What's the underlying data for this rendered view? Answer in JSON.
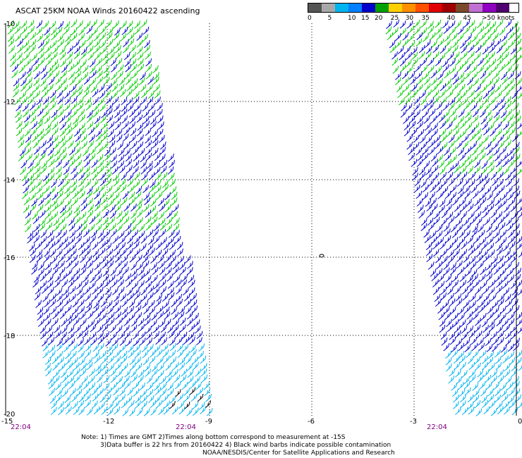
{
  "title": "ASCAT 25KM NOAA Winds 20160422 ascending",
  "legend": {
    "colors": [
      "#555555",
      "#a8a8a8",
      "#00b4f0",
      "#0080ff",
      "#0000cc",
      "#00a000",
      "#ffd000",
      "#ff9000",
      "#ff5000",
      "#e00000",
      "#a00000",
      "#7a4a2a",
      "#c070d0",
      "#9000c0",
      "#500070"
    ],
    "labels": [
      {
        "text": "0",
        "sw": 0
      },
      {
        "text": "5",
        "sw": 1.5
      },
      {
        "text": "10",
        "sw": 3
      },
      {
        "text": "15",
        "sw": 4
      },
      {
        "text": "20",
        "sw": 5
      },
      {
        "text": "25",
        "sw": 6.2
      },
      {
        "text": "30",
        "sw": 7.3
      },
      {
        "text": "35",
        "sw": 8.5
      },
      {
        "text": "40",
        "sw": 10.4
      },
      {
        "text": "45",
        "sw": 11.6
      },
      {
        "text": ">50 knots",
        "sw": 13
      }
    ]
  },
  "map": {
    "lat_labels": [
      "-10",
      "-12",
      "-14",
      "-16",
      "-18",
      "-20"
    ],
    "lon_labels": [
      "-15",
      "-12",
      "-9",
      "-6",
      "-3",
      "0"
    ],
    "time_labels": [
      "22:04",
      "22:04",
      "22:04"
    ],
    "time_color": "#800080",
    "colors": {
      "green": "#00cc00",
      "blue": "#0000cc",
      "cyan": "#00b4f0",
      "black": "#000000"
    }
  },
  "note_lines": [
    "Note: 1) Times are GMT 2)Times along bottom correspond to measurement at -15S",
    "3)Data buffer is 22 hrs from 20160422 4) Black wind barbs indicate possible contamination",
    "NOAA/NESDIS/Center for Satellite Applications and Research"
  ]
}
